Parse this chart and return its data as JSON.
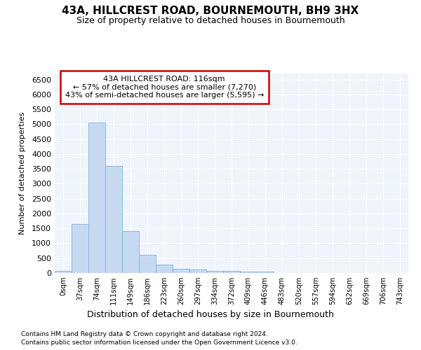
{
  "title": "43A, HILLCREST ROAD, BOURNEMOUTH, BH9 3HX",
  "subtitle": "Size of property relative to detached houses in Bournemouth",
  "xlabel": "Distribution of detached houses by size in Bournemouth",
  "ylabel": "Number of detached properties",
  "footnote1": "Contains HM Land Registry data © Crown copyright and database right 2024.",
  "footnote2": "Contains public sector information licensed under the Open Government Licence v3.0.",
  "bar_labels": [
    "0sqm",
    "37sqm",
    "74sqm",
    "111sqm",
    "149sqm",
    "186sqm",
    "223sqm",
    "260sqm",
    "297sqm",
    "334sqm",
    "372sqm",
    "409sqm",
    "446sqm",
    "483sqm",
    "520sqm",
    "557sqm",
    "594sqm",
    "632sqm",
    "669sqm",
    "706sqm",
    "743sqm"
  ],
  "bar_values": [
    70,
    1650,
    5060,
    3600,
    1400,
    610,
    290,
    150,
    115,
    80,
    60,
    55,
    40,
    0,
    0,
    0,
    0,
    0,
    0,
    0,
    0
  ],
  "bar_color": "#c6d9f0",
  "bar_edge_color": "#7fb3d9",
  "ylim_max": 6700,
  "yticks": [
    0,
    500,
    1000,
    1500,
    2000,
    2500,
    3000,
    3500,
    4000,
    4500,
    5000,
    5500,
    6000,
    6500
  ],
  "annotation_box_text": "43A HILLCREST ROAD: 116sqm\n← 57% of detached houses are smaller (7,270)\n43% of semi-detached houses are larger (5,595) →",
  "annotation_box_edgecolor": "#cc0000",
  "background_color": "#ffffff",
  "plot_bg_color": "#f0f4fb",
  "grid_color": "#ffffff",
  "title_fontsize": 11,
  "subtitle_fontsize": 9
}
